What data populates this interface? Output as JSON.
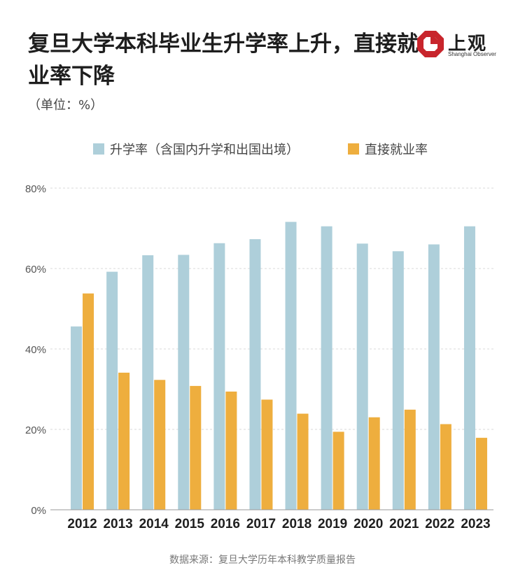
{
  "title": "复旦大学本科毕业生升学率上升，直接就业率下降",
  "unit": "（单位：%）",
  "logo": {
    "cn": "上观",
    "en": "Shanghai Observer"
  },
  "source": "数据来源：复旦大学历年本科教学质量报告",
  "colors": {
    "series1": "#aecfda",
    "series2": "#eeae3e",
    "grid": "#d9d9d9",
    "axis": "#999999"
  },
  "chart_data": {
    "type": "bar",
    "categories": [
      "2012",
      "2013",
      "2014",
      "2015",
      "2016",
      "2017",
      "2018",
      "2019",
      "2020",
      "2021",
      "2022",
      "2023"
    ],
    "series": [
      {
        "name": "升学率（含国内升学和出国出境）",
        "color": "#aecfda",
        "values": [
          45.6,
          59.2,
          63.3,
          63.4,
          66.3,
          67.3,
          71.6,
          70.5,
          66.2,
          64.3,
          66.0,
          70.5
        ]
      },
      {
        "name": "直接就业率",
        "color": "#eeae3e",
        "values": [
          53.8,
          34.1,
          32.3,
          30.8,
          29.4,
          27.4,
          23.9,
          19.4,
          23.0,
          24.9,
          21.3,
          17.9
        ]
      }
    ],
    "ylim": [
      0,
      80
    ],
    "yticks": [
      "0%",
      "20%",
      "40%",
      "60%",
      "80%"
    ],
    "ytick_values": [
      0,
      20,
      40,
      60,
      80
    ],
    "grid": true,
    "legend_position": "top-center"
  }
}
